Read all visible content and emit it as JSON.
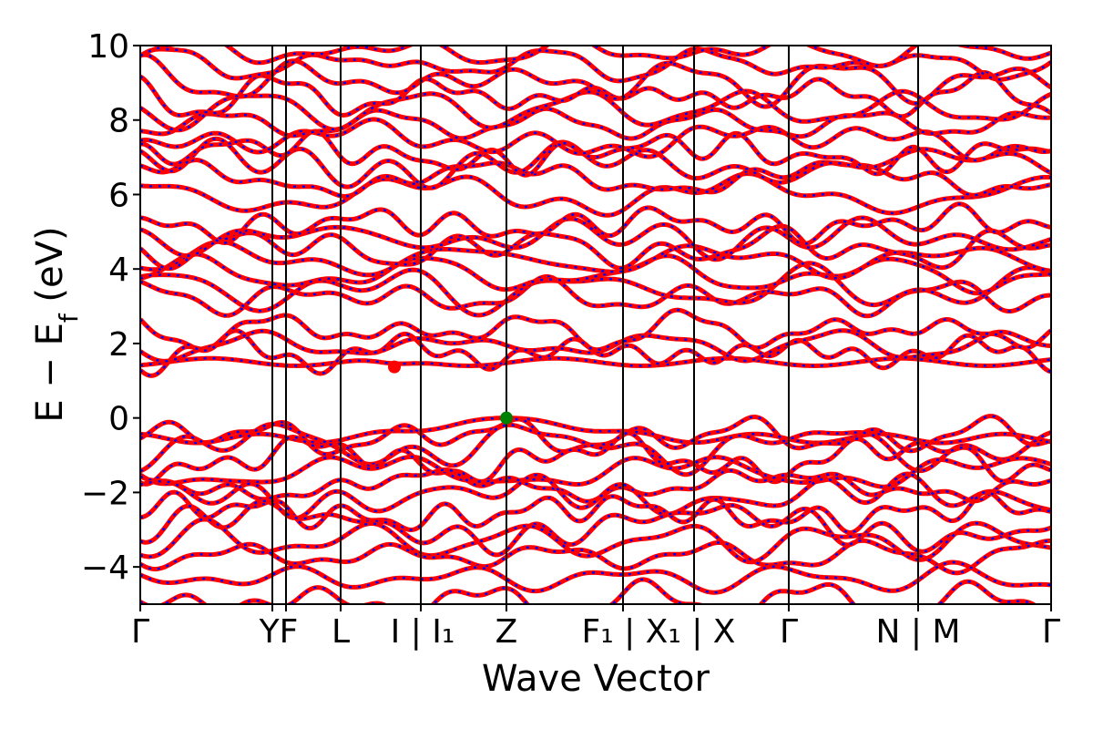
{
  "chart_data": {
    "type": "line",
    "title": "",
    "xlabel": "Wave Vector",
    "ylabel": "E − E",
    "ylabel_sub": "f",
    "ylabel_unit": " (eV)",
    "ylim": [
      -5,
      10
    ],
    "yticks": [
      -4,
      -2,
      0,
      2,
      4,
      6,
      8,
      10
    ],
    "ytick_labels": [
      "−4",
      "−2",
      "0",
      "2",
      "4",
      "6",
      "8",
      "10"
    ],
    "path": {
      "segments_x": [
        0,
        14.5,
        16.0,
        22.0,
        30.8,
        40.2,
        53.0,
        60.8,
        71.2,
        85.4,
        100
      ],
      "labels": [
        "Γ",
        "YF",
        "L",
        "I | I₁",
        "Z",
        "F₁ | X₁ | X",
        "Γ",
        "N | M",
        "Γ"
      ],
      "label_x": [
        0,
        15.2,
        22.0,
        31.0,
        40.2,
        56.9,
        71.2,
        85.4,
        100
      ],
      "vlines_x": [
        14.5,
        16.0,
        22.0,
        30.8,
        40.2,
        53.0,
        60.8,
        71.2,
        85.4
      ]
    },
    "colors": {
      "band_red": "#ff0000",
      "band_blue": "#0000ff",
      "vbm_marker": "#008000",
      "cbm_marker": "#ff0000"
    },
    "markers": [
      {
        "name": "CBM",
        "x": 27.9,
        "y": 1.37,
        "color": "#ff0000"
      },
      {
        "name": "VBM",
        "x": 40.2,
        "y": 0.0,
        "color": "#008000"
      }
    ],
    "bands_conduction_base": [
      1.55,
      1.75,
      1.95,
      2.35,
      3.25,
      3.45,
      3.85,
      4.25,
      4.55,
      4.85,
      5.2,
      6.0,
      6.45,
      6.8,
      7.1,
      7.45,
      7.9,
      8.3,
      8.65,
      9.05,
      9.5,
      9.85
    ],
    "bands_valence_base": [
      -0.15,
      -0.5,
      -0.75,
      -1.1,
      -1.45,
      -1.8,
      -2.1,
      -2.55,
      -2.9,
      -3.3,
      -3.7,
      -4.3,
      -4.95
    ],
    "gap_label": ""
  }
}
